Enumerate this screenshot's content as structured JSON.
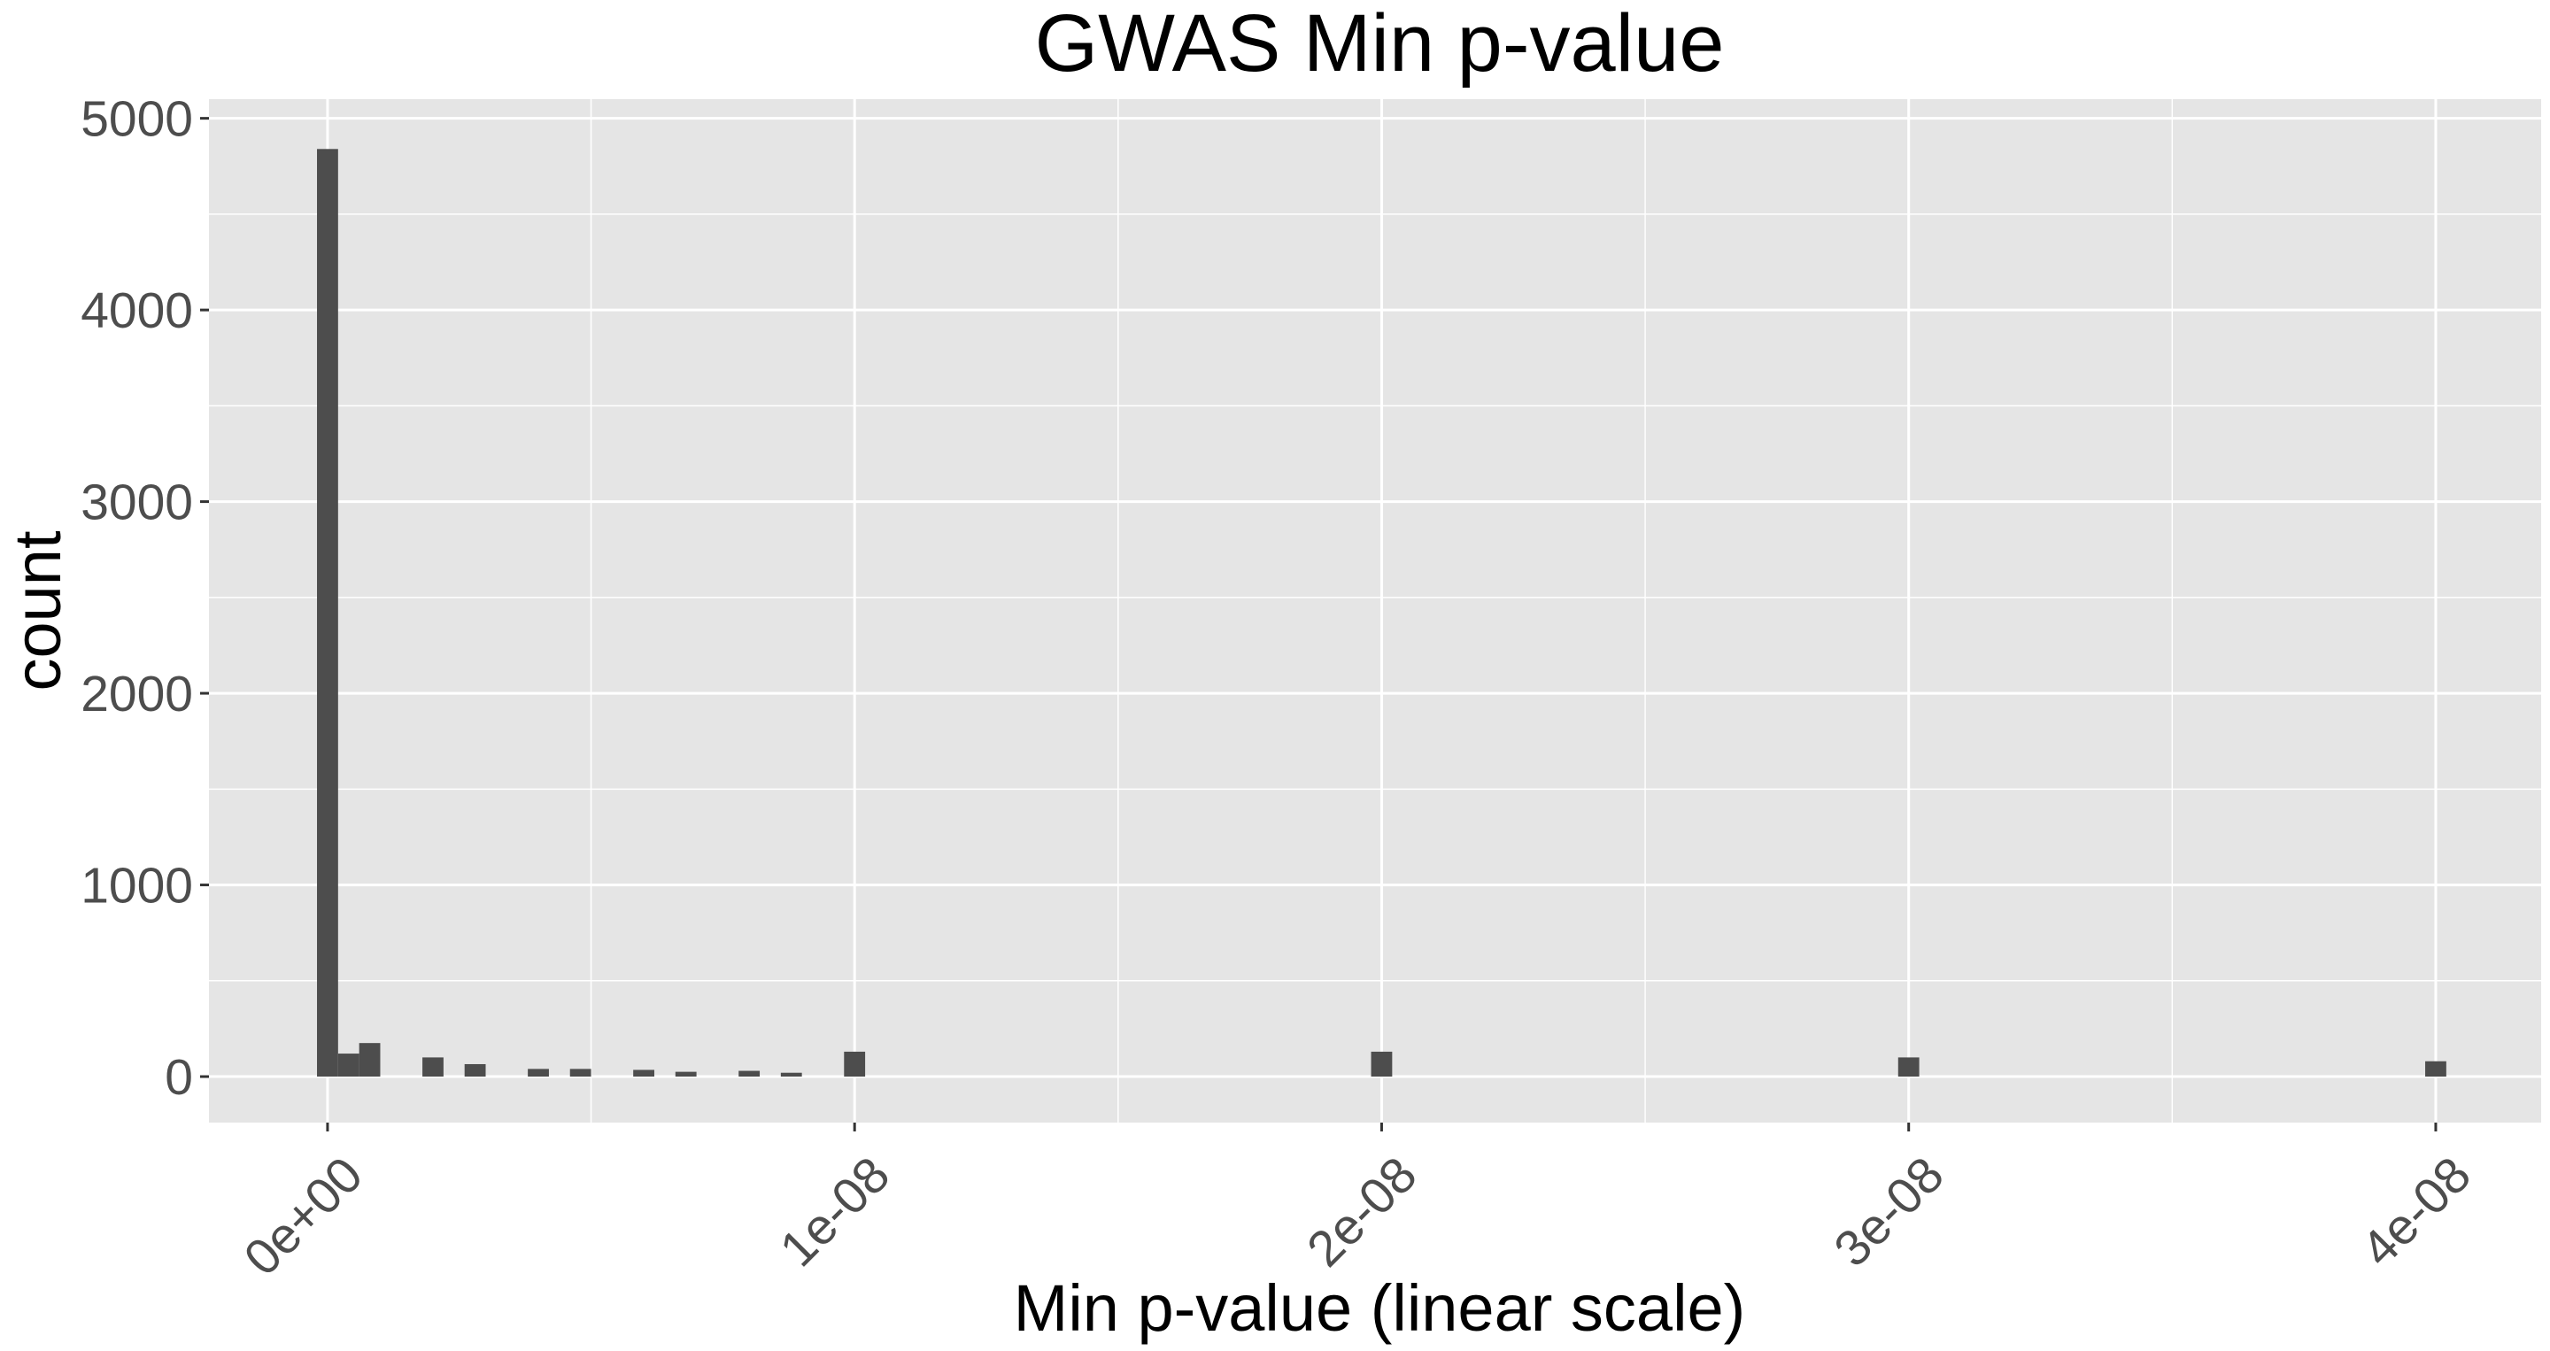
{
  "chart_data": {
    "type": "bar",
    "title": "GWAS Min p-value",
    "xlabel": "Min p-value (linear scale)",
    "ylabel": "count",
    "xlim": [
      -2.25e-09,
      4.2e-08
    ],
    "ylim": [
      -240,
      5100
    ],
    "x_ticks": [
      0,
      1e-08,
      2e-08,
      3e-08,
      4e-08
    ],
    "x_tick_labels": [
      "0e+00",
      "1e-08",
      "2e-08",
      "3e-08",
      "4e-08"
    ],
    "y_ticks": [
      0,
      1000,
      2000,
      3000,
      4000,
      5000
    ],
    "y_tick_labels": [
      "0",
      "1000",
      "2000",
      "3000",
      "4000",
      "5000"
    ],
    "bin_width": 4e-10,
    "bins": [
      {
        "x": 0.0,
        "count": 4840
      },
      {
        "x": 4e-10,
        "count": 120
      },
      {
        "x": 8e-10,
        "count": 175
      },
      {
        "x": 2e-09,
        "count": 100
      },
      {
        "x": 2.8e-09,
        "count": 65
      },
      {
        "x": 4e-09,
        "count": 40
      },
      {
        "x": 4.8e-09,
        "count": 40
      },
      {
        "x": 6e-09,
        "count": 35
      },
      {
        "x": 6.8e-09,
        "count": 25
      },
      {
        "x": 8e-09,
        "count": 30
      },
      {
        "x": 8.8e-09,
        "count": 20
      },
      {
        "x": 1e-08,
        "count": 130
      },
      {
        "x": 2e-08,
        "count": 130
      },
      {
        "x": 3e-08,
        "count": 100
      },
      {
        "x": 4e-08,
        "count": 80
      }
    ],
    "grid": true,
    "colors": {
      "panel_background": "#e5e5e5",
      "grid_major": "#ffffff",
      "bar_fill": "#4d4d4d"
    }
  }
}
